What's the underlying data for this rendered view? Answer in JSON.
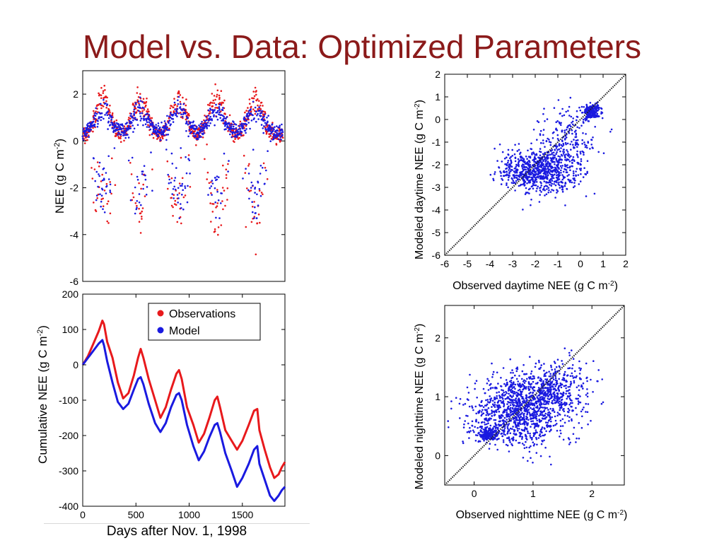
{
  "title": "Model vs. Data: Optimized Parameters",
  "caption": "Days after Nov. 1, 1998",
  "colors": {
    "title": "#8b1a1a",
    "observations": "#e8191c",
    "model": "#1a1ae0",
    "one_to_one": "#222222"
  },
  "chart_data": [
    {
      "id": "nee-timeseries",
      "type": "scatter",
      "title": "",
      "xlabel": "",
      "ylabel": "NEE (g C m-2)",
      "xlim": [
        0,
        1900
      ],
      "ylim": [
        -6,
        3
      ],
      "yticks": [
        2,
        0,
        -2,
        -4,
        -6
      ],
      "grid": false,
      "description_of_points": "dense daily/half-daily NEE points for observations (red) and model (blue) over ~5 annual cycles",
      "series": [
        {
          "name": "Observations",
          "color": "#e8191c",
          "seasonal_peaks_x": [
            190,
            540,
            900,
            1260,
            1620
          ],
          "night_baseline": 0.2,
          "peak_positive": 2.2,
          "daytime_min": -5.2
        },
        {
          "name": "Model",
          "color": "#1a1ae0",
          "seasonal_peaks_x": [
            190,
            540,
            900,
            1260,
            1620
          ],
          "night_baseline": 0.35,
          "peak_positive": 1.6,
          "daytime_min": -3.3
        }
      ]
    },
    {
      "id": "cumulative-nee",
      "type": "line",
      "title": "",
      "xlabel": "",
      "ylabel": "Cumulative NEE (g C m-2)",
      "xlim": [
        0,
        1900
      ],
      "ylim": [
        -400,
        200
      ],
      "xticks": [
        0,
        500,
        1000,
        1500
      ],
      "yticks": [
        200,
        100,
        0,
        -100,
        -200,
        -300,
        -400
      ],
      "legend": "top-right",
      "grid": false,
      "series": [
        {
          "name": "Observations",
          "color": "#e8191c",
          "x": [
            0,
            50,
            100,
            150,
            185,
            200,
            230,
            280,
            330,
            380,
            430,
            480,
            520,
            545,
            570,
            620,
            680,
            730,
            780,
            830,
            880,
            905,
            930,
            980,
            1040,
            1090,
            1140,
            1190,
            1240,
            1265,
            1290,
            1340,
            1400,
            1450,
            1500,
            1560,
            1610,
            1640,
            1660,
            1710,
            1760,
            1800,
            1840,
            1870,
            1900
          ],
          "values": [
            0,
            25,
            60,
            95,
            125,
            115,
            65,
            20,
            -50,
            -95,
            -80,
            -30,
            20,
            45,
            20,
            -40,
            -100,
            -150,
            -120,
            -70,
            -25,
            -15,
            -40,
            -120,
            -170,
            -220,
            -195,
            -150,
            -100,
            -90,
            -120,
            -185,
            -215,
            -240,
            -215,
            -170,
            -130,
            -125,
            -185,
            -240,
            -290,
            -320,
            -310,
            -290,
            -275
          ]
        },
        {
          "name": "Model",
          "color": "#1a1ae0",
          "x": [
            0,
            50,
            100,
            150,
            185,
            200,
            230,
            280,
            330,
            380,
            430,
            480,
            520,
            545,
            570,
            620,
            680,
            730,
            780,
            830,
            880,
            905,
            930,
            980,
            1040,
            1090,
            1140,
            1190,
            1240,
            1265,
            1290,
            1340,
            1400,
            1450,
            1500,
            1560,
            1610,
            1640,
            1660,
            1710,
            1760,
            1800,
            1840,
            1870,
            1900
          ],
          "values": [
            0,
            20,
            40,
            60,
            70,
            55,
            10,
            -50,
            -105,
            -125,
            -110,
            -70,
            -40,
            -35,
            -55,
            -110,
            -165,
            -190,
            -165,
            -120,
            -85,
            -80,
            -100,
            -170,
            -230,
            -270,
            -245,
            -205,
            -170,
            -165,
            -190,
            -250,
            -300,
            -345,
            -320,
            -280,
            -240,
            -230,
            -280,
            -325,
            -370,
            -385,
            -370,
            -355,
            -345
          ]
        }
      ]
    },
    {
      "id": "daytime-scatter",
      "type": "scatter",
      "title": "",
      "xlabel": "Observed daytime NEE (g C m-2)",
      "ylabel": "Modeled daytime NEE (g C m-2)",
      "xlim": [
        -6,
        2
      ],
      "ylim": [
        -6,
        2
      ],
      "xticks": [
        -6,
        -5,
        -4,
        -3,
        -2,
        -1,
        0,
        1,
        2
      ],
      "yticks": [
        2,
        1,
        0,
        -1,
        -2,
        -3,
        -4,
        -5,
        -6
      ],
      "one_to_one_line": true,
      "grid": false,
      "series": [
        {
          "name": "",
          "color": "#1a1ae0",
          "clusters": [
            {
              "cx": 0.5,
              "cy": 0.35,
              "sx": 0.18,
              "sy": 0.15,
              "n": 250
            },
            {
              "cx": -2.0,
              "cy": -2.3,
              "sx": 0.75,
              "sy": 0.45,
              "n": 700
            },
            {
              "cx": -0.7,
              "cy": -1.3,
              "sx": 0.65,
              "sy": 0.9,
              "n": 300
            }
          ]
        }
      ]
    },
    {
      "id": "nighttime-scatter",
      "type": "scatter",
      "title": "",
      "xlabel": "Observed nighttime NEE (g C m-2)",
      "ylabel": "Modeled nighttime NEE (g C m-2)",
      "xlim": [
        -0.5,
        2.55
      ],
      "ylim": [
        -0.5,
        2.55
      ],
      "xticks": [
        0,
        1,
        2
      ],
      "yticks": [
        2,
        1,
        0
      ],
      "one_to_one_line": true,
      "grid": false,
      "series": [
        {
          "name": "",
          "color": "#1a1ae0",
          "clusters": [
            {
              "cx": 0.25,
              "cy": 0.35,
              "sx": 0.08,
              "sy": 0.05,
              "n": 180
            },
            {
              "cx": 0.75,
              "cy": 0.75,
              "sx": 0.42,
              "sy": 0.3,
              "n": 1100
            },
            {
              "cx": 1.35,
              "cy": 1.15,
              "sx": 0.3,
              "sy": 0.22,
              "n": 400
            }
          ]
        }
      ]
    }
  ]
}
